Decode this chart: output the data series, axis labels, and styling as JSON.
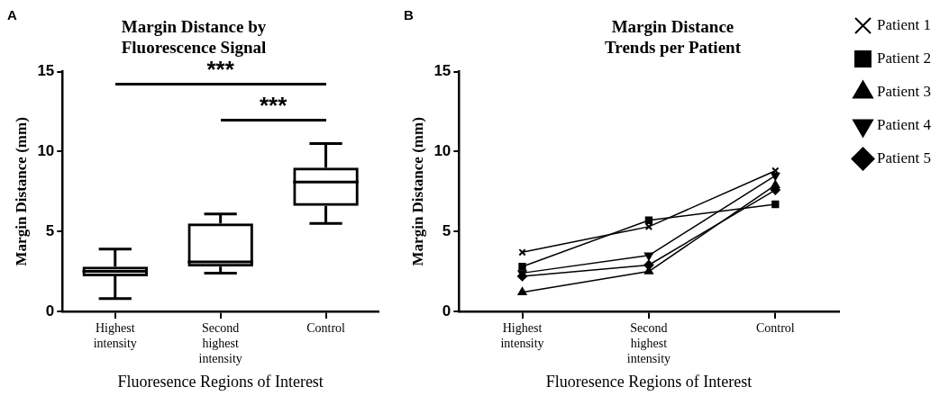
{
  "chart_data": [
    {
      "type": "box",
      "title": "Margin Distance by Fluorescence Signal",
      "xlabel": "Fluoresence Regions of Interest",
      "ylabel": "Margin Distance (mm)",
      "categories": [
        "Highest intensity",
        "Second highest intensity",
        "Control"
      ],
      "boxes": [
        {
          "low": 0.8,
          "q1": 2.2,
          "median": 2.5,
          "q3": 2.8,
          "high": 3.9
        },
        {
          "low": 2.4,
          "q1": 2.8,
          "median": 3.1,
          "q3": 5.5,
          "high": 6.1
        },
        {
          "low": 5.5,
          "q1": 6.6,
          "median": 8.1,
          "q3": 9.0,
          "high": 10.5
        }
      ],
      "color": "#000000",
      "ylim": [
        0,
        15
      ],
      "yticks": [
        0,
        5,
        10,
        15
      ],
      "grid": false,
      "legend": false,
      "annotations": [
        "A",
        "***",
        "***"
      ]
    },
    {
      "type": "line",
      "title": "Margin Distance Trends per Patient",
      "xlabel": "Fluoresence Regions of Interest",
      "ylabel": "Margin Distance (mm)",
      "categories": [
        "Highest intensity",
        "Second highest intensity",
        "Control"
      ],
      "series": [
        {
          "name": "Patient 1",
          "color": "#000000",
          "marker": "cross",
          "values": [
            3.7,
            5.3,
            8.8
          ]
        },
        {
          "name": "Patient 2",
          "color": "#000000",
          "marker": "square",
          "values": [
            2.8,
            5.7,
            6.7
          ]
        },
        {
          "name": "Patient 3",
          "color": "#000000",
          "marker": "triangle",
          "values": [
            1.2,
            2.5,
            7.9
          ]
        },
        {
          "name": "Patient 4",
          "color": "#000000",
          "marker": "triangle-down",
          "values": [
            2.4,
            3.5,
            8.5
          ]
        },
        {
          "name": "Patient 5",
          "color": "#000000",
          "marker": "diamond",
          "values": [
            2.2,
            2.9,
            7.6
          ]
        }
      ],
      "ylim": [
        0,
        15
      ],
      "yticks": [
        0,
        5,
        10,
        15
      ],
      "grid": false,
      "legend": "right",
      "line_style": "solid",
      "annotations": [
        "B"
      ]
    }
  ]
}
